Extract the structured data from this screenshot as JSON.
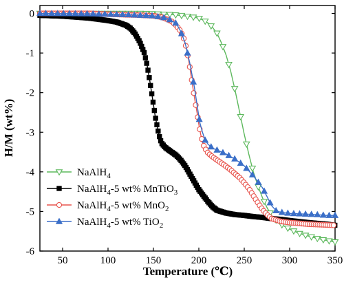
{
  "chart_data": {
    "type": "line",
    "xlabel": "Temperature (℃)",
    "ylabel": "H/M (wt%)",
    "xlim": [
      25,
      350
    ],
    "ylim": [
      -6,
      0.2
    ],
    "xticks": [
      50,
      100,
      150,
      200,
      250,
      300,
      350
    ],
    "yticks": [
      0,
      -1,
      -2,
      -3,
      -4,
      -5,
      -6
    ],
    "x_tick_labels": [
      "50",
      "100",
      "150",
      "200",
      "250",
      "300",
      "350"
    ],
    "y_tick_labels": [
      "0",
      "-1",
      "-2",
      "-3",
      "-4",
      "-5",
      "-6"
    ],
    "grid": false,
    "legend_position": "bottom-left",
    "series": [
      {
        "name": "NaAlH4",
        "legend_main": "NaAlH",
        "legend_sub": "4",
        "legend_suffix": "",
        "color": "#5cb85c",
        "marker": "triangle-down-open",
        "x": [
          25,
          50,
          80,
          100,
          120,
          140,
          160,
          170,
          180,
          190,
          200,
          205,
          210,
          215,
          220,
          225,
          230,
          235,
          240,
          245,
          250,
          255,
          260,
          265,
          270,
          275,
          280,
          285,
          290,
          300,
          310,
          320,
          330,
          340,
          350
        ],
        "y": [
          0,
          0,
          0,
          0,
          0,
          0,
          -0.02,
          -0.03,
          -0.05,
          -0.08,
          -0.12,
          -0.17,
          -0.24,
          -0.35,
          -0.5,
          -0.75,
          -1.05,
          -1.45,
          -1.95,
          -2.5,
          -3.05,
          -3.55,
          -4.0,
          -4.35,
          -4.65,
          -4.9,
          -5.1,
          -5.22,
          -5.32,
          -5.45,
          -5.55,
          -5.62,
          -5.68,
          -5.73,
          -5.77
        ]
      },
      {
        "name": "NaAlH4-5 wt% MnTiO3",
        "legend_main": "NaAlH",
        "legend_sub": "4",
        "legend_suffix": "-5 wt% MnTiO",
        "legend_sub2": "3",
        "color": "#000000",
        "marker": "square",
        "x": [
          25,
          50,
          80,
          100,
          110,
          120,
          125,
          130,
          135,
          140,
          143,
          146,
          149,
          152,
          155,
          157,
          159,
          160,
          162,
          165,
          170,
          175,
          180,
          185,
          190,
          195,
          200,
          205,
          210,
          215,
          220,
          230,
          240,
          250,
          260,
          270,
          280,
          290,
          300,
          320,
          340,
          350
        ],
        "y": [
          -0.05,
          -0.07,
          -0.12,
          -0.18,
          -0.22,
          -0.3,
          -0.38,
          -0.52,
          -0.72,
          -1.0,
          -1.3,
          -1.7,
          -2.15,
          -2.6,
          -2.95,
          -3.15,
          -3.28,
          -3.3,
          -3.36,
          -3.42,
          -3.5,
          -3.58,
          -3.7,
          -3.85,
          -4.05,
          -4.25,
          -4.45,
          -4.6,
          -4.75,
          -4.88,
          -4.97,
          -5.04,
          -5.08,
          -5.1,
          -5.13,
          -5.15,
          -5.18,
          -5.2,
          -5.23,
          -5.28,
          -5.32,
          -5.35
        ]
      },
      {
        "name": "NaAlH4-5 wt% MnO2",
        "legend_main": "NaAlH",
        "legend_sub": "4",
        "legend_suffix": "-5 wt% MnO",
        "legend_sub2": "2",
        "color": "#e8544d",
        "marker": "circle-open",
        "x": [
          25,
          50,
          80,
          100,
          130,
          150,
          160,
          170,
          175,
          180,
          183,
          186,
          189,
          192,
          195,
          198,
          200,
          202,
          204,
          206,
          208,
          210,
          215,
          220,
          225,
          230,
          235,
          240,
          245,
          250,
          255,
          260,
          265,
          270,
          275,
          280,
          290,
          300,
          310,
          320,
          340,
          350
        ],
        "y": [
          0,
          0,
          0,
          -0.02,
          -0.04,
          -0.06,
          -0.1,
          -0.2,
          -0.3,
          -0.45,
          -0.6,
          -0.85,
          -1.2,
          -1.65,
          -2.1,
          -2.5,
          -2.8,
          -3.05,
          -3.25,
          -3.38,
          -3.45,
          -3.52,
          -3.62,
          -3.7,
          -3.78,
          -3.86,
          -3.95,
          -4.05,
          -4.15,
          -4.28,
          -4.42,
          -4.6,
          -4.78,
          -4.95,
          -5.08,
          -5.18,
          -5.25,
          -5.28,
          -5.3,
          -5.32,
          -5.34,
          -5.35
        ]
      },
      {
        "name": "NaAlH4-5 wt% TiO2",
        "legend_main": "NaAlH",
        "legend_sub": "4",
        "legend_suffix": "-5 wt% TiO",
        "legend_sub2": "2",
        "color": "#3b6fc8",
        "marker": "triangle-up",
        "x": [
          25,
          80,
          120,
          150,
          165,
          175,
          180,
          185,
          190,
          195,
          198,
          201,
          204,
          207,
          210,
          215,
          220,
          225,
          230,
          240,
          250,
          260,
          270,
          275,
          280,
          285,
          290,
          300,
          310,
          320,
          330,
          340,
          350
        ],
        "y": [
          0,
          -0.01,
          -0.03,
          -0.06,
          -0.12,
          -0.25,
          -0.45,
          -0.75,
          -1.25,
          -1.85,
          -2.3,
          -2.75,
          -3.0,
          -3.2,
          -3.3,
          -3.4,
          -3.45,
          -3.5,
          -3.55,
          -3.68,
          -3.85,
          -4.1,
          -4.4,
          -4.62,
          -4.85,
          -4.98,
          -5.02,
          -5.05,
          -5.06,
          -5.07,
          -5.08,
          -5.1,
          -5.1
        ]
      }
    ]
  }
}
